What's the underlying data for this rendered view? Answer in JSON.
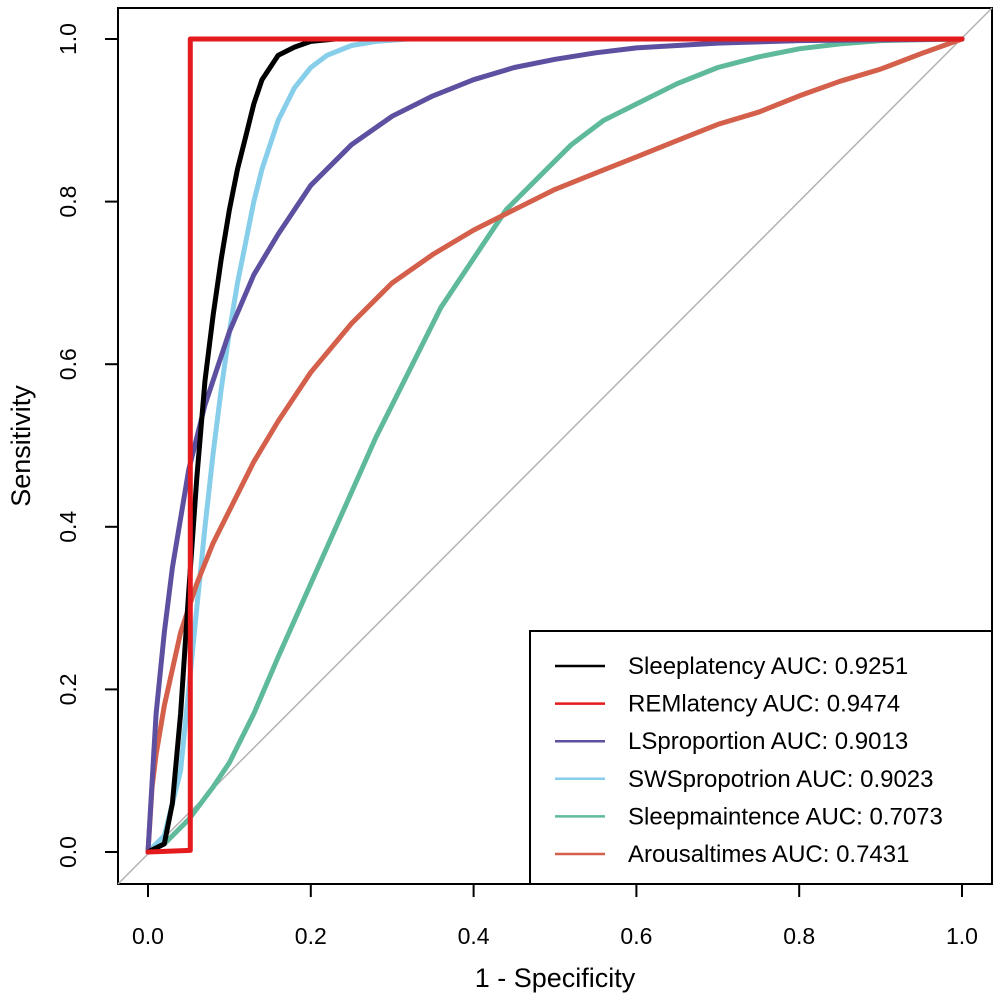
{
  "chart_data": {
    "type": "line",
    "title": "",
    "xlabel": "1 - Specificity",
    "ylabel": "Sensitivity",
    "xlim": [
      0.0,
      1.0
    ],
    "ylim": [
      0.0,
      1.0
    ],
    "x_ticks": [
      "0.0",
      "0.2",
      "0.4",
      "0.6",
      "0.8",
      "1.0"
    ],
    "y_ticks": [
      "0.0",
      "0.2",
      "0.4",
      "0.6",
      "0.8",
      "1.0"
    ],
    "grid": false,
    "legend_position": "bottom-right",
    "reference_line": {
      "from": [
        0,
        0
      ],
      "to": [
        1,
        1
      ],
      "color": "#b3b3b3"
    },
    "series": [
      {
        "name": "Sleeplatency AUC: 0.9251",
        "color": "#000000",
        "x": [
          0,
          0.02,
          0.03,
          0.04,
          0.05,
          0.06,
          0.07,
          0.08,
          0.09,
          0.1,
          0.11,
          0.12,
          0.13,
          0.14,
          0.16,
          0.18,
          0.2,
          0.23,
          0.26,
          0.3,
          1.0
        ],
        "y": [
          0,
          0.01,
          0.06,
          0.17,
          0.32,
          0.46,
          0.58,
          0.66,
          0.73,
          0.79,
          0.84,
          0.88,
          0.92,
          0.95,
          0.98,
          0.99,
          0.997,
          1.0,
          1.0,
          1.0,
          1.0
        ]
      },
      {
        "name": "REMlatency AUC: 0.9474",
        "color": "#e41a1c",
        "x": [
          0,
          0.052,
          0.052,
          0.052,
          1.0
        ],
        "y": [
          0,
          0.002,
          0.5,
          1.0,
          1.0
        ]
      },
      {
        "name": "LSproportion AUC: 0.9013",
        "color": "#5e50a1",
        "x": [
          0,
          0.01,
          0.02,
          0.03,
          0.05,
          0.07,
          0.1,
          0.13,
          0.16,
          0.2,
          0.25,
          0.3,
          0.35,
          0.4,
          0.45,
          0.5,
          0.55,
          0.6,
          0.7,
          0.8,
          0.9,
          1.0
        ],
        "y": [
          0,
          0.17,
          0.27,
          0.35,
          0.47,
          0.55,
          0.64,
          0.71,
          0.76,
          0.82,
          0.87,
          0.905,
          0.93,
          0.95,
          0.965,
          0.975,
          0.983,
          0.989,
          0.995,
          0.998,
          0.999,
          1.0
        ]
      },
      {
        "name": "SWSpropotrion AUC: 0.9023",
        "color": "#87ceeb",
        "x": [
          0,
          0.02,
          0.04,
          0.05,
          0.06,
          0.07,
          0.08,
          0.09,
          0.1,
          0.11,
          0.12,
          0.13,
          0.14,
          0.16,
          0.18,
          0.2,
          0.22,
          0.25,
          0.28,
          0.32,
          0.4,
          1.0
        ],
        "y": [
          0,
          0.02,
          0.1,
          0.2,
          0.3,
          0.4,
          0.49,
          0.57,
          0.64,
          0.7,
          0.75,
          0.8,
          0.84,
          0.9,
          0.94,
          0.965,
          0.98,
          0.992,
          0.997,
          1.0,
          1.0,
          1.0
        ]
      },
      {
        "name": "Sleepmaintence AUC: 0.7073",
        "color": "#5fba9b",
        "x": [
          0,
          0.02,
          0.05,
          0.08,
          0.1,
          0.13,
          0.16,
          0.2,
          0.24,
          0.28,
          0.32,
          0.36,
          0.4,
          0.44,
          0.48,
          0.52,
          0.56,
          0.6,
          0.65,
          0.7,
          0.75,
          0.8,
          0.85,
          0.9,
          1.0
        ],
        "y": [
          0,
          0.01,
          0.04,
          0.08,
          0.11,
          0.17,
          0.24,
          0.33,
          0.42,
          0.51,
          0.59,
          0.67,
          0.73,
          0.79,
          0.83,
          0.87,
          0.9,
          0.92,
          0.945,
          0.965,
          0.978,
          0.988,
          0.994,
          0.998,
          1.0
        ]
      },
      {
        "name": "Arousaltimes AUC: 0.7431",
        "color": "#d45f4a",
        "x": [
          0,
          0.005,
          0.01,
          0.02,
          0.04,
          0.06,
          0.08,
          0.1,
          0.13,
          0.16,
          0.2,
          0.25,
          0.3,
          0.35,
          0.4,
          0.45,
          0.5,
          0.55,
          0.6,
          0.65,
          0.7,
          0.75,
          0.8,
          0.85,
          0.9,
          0.95,
          1.0
        ],
        "y": [
          0,
          0.08,
          0.12,
          0.18,
          0.27,
          0.33,
          0.38,
          0.42,
          0.48,
          0.53,
          0.59,
          0.65,
          0.7,
          0.735,
          0.765,
          0.79,
          0.815,
          0.835,
          0.855,
          0.875,
          0.895,
          0.91,
          0.93,
          0.948,
          0.963,
          0.982,
          1.0
        ]
      }
    ]
  }
}
